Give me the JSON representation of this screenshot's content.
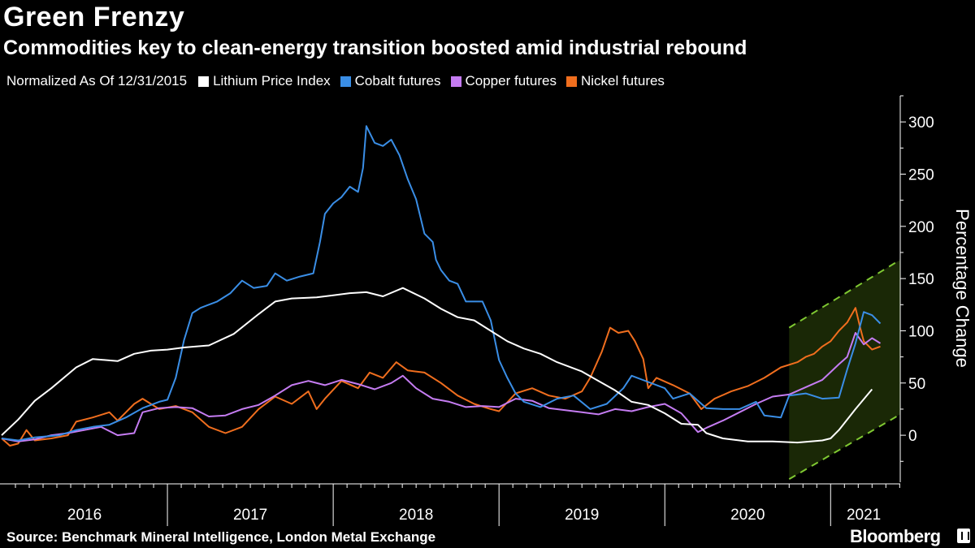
{
  "header": {
    "title": "Green Frenzy",
    "subtitle": "Commodities key to clean-energy transition boosted amid industrial rebound"
  },
  "legend": {
    "note": "Normalized As Of 12/31/2015",
    "items": [
      {
        "label": "Lithium Price Index",
        "color": "#ffffff"
      },
      {
        "label": "Cobalt futures",
        "color": "#3a8ee6"
      },
      {
        "label": "Copper futures",
        "color": "#c57cf2"
      },
      {
        "label": "Nickel futures",
        "color": "#f06e1e"
      }
    ]
  },
  "footer": {
    "source": "Source: Benchmark Mineral Intelligence, London Metal Exchange",
    "brand": "Bloomberg"
  },
  "colors": {
    "background": "#000000",
    "text": "#ffffff",
    "axis": "#ffffff",
    "highlight_fill": "#1b2a06",
    "highlight_dash": "#7fc832"
  },
  "chart_data": {
    "type": "line",
    "ylabel": "Percentage Change",
    "xlabel": "",
    "y_axis_side": "right",
    "ylim": [
      -45,
      325
    ],
    "y_ticks": [
      0,
      50,
      100,
      150,
      200,
      250,
      300
    ],
    "xlim": [
      2016.0,
      2021.42
    ],
    "x_tick_labels": [
      {
        "label": "2016",
        "x": 2016.5
      },
      {
        "label": "2017",
        "x": 2017.5
      },
      {
        "label": "2018",
        "x": 2018.5
      },
      {
        "label": "2019",
        "x": 2019.5
      },
      {
        "label": "2020",
        "x": 2020.5
      },
      {
        "label": "2021",
        "x": 2021.2
      }
    ],
    "year_boundaries": [
      2017,
      2018,
      2019,
      2020,
      2021
    ],
    "grid": false,
    "legend_position": "top",
    "highlight_channel": {
      "x_start": 2020.75,
      "x_end": 2021.42,
      "upper_start": 103,
      "upper_end": 168,
      "lower_start": -42,
      "lower_end": 20
    },
    "series": [
      {
        "name": "Lithium Price Index",
        "color": "#ffffff",
        "points": [
          [
            2016.0,
            0
          ],
          [
            2016.1,
            15
          ],
          [
            2016.2,
            33
          ],
          [
            2016.3,
            45
          ],
          [
            2016.45,
            65
          ],
          [
            2016.55,
            73
          ],
          [
            2016.7,
            71
          ],
          [
            2016.8,
            78
          ],
          [
            2016.9,
            81
          ],
          [
            2017.0,
            82
          ],
          [
            2017.1,
            84
          ],
          [
            2017.25,
            86
          ],
          [
            2017.4,
            97
          ],
          [
            2017.55,
            116
          ],
          [
            2017.65,
            128
          ],
          [
            2017.75,
            131
          ],
          [
            2017.9,
            132
          ],
          [
            2018.0,
            134
          ],
          [
            2018.1,
            136
          ],
          [
            2018.2,
            137
          ],
          [
            2018.3,
            133
          ],
          [
            2018.42,
            141
          ],
          [
            2018.55,
            131
          ],
          [
            2018.65,
            121
          ],
          [
            2018.75,
            113
          ],
          [
            2018.85,
            110
          ],
          [
            2018.95,
            100
          ],
          [
            2019.05,
            90
          ],
          [
            2019.15,
            83
          ],
          [
            2019.25,
            78
          ],
          [
            2019.35,
            70
          ],
          [
            2019.5,
            61
          ],
          [
            2019.6,
            52
          ],
          [
            2019.7,
            43
          ],
          [
            2019.8,
            32
          ],
          [
            2019.9,
            29
          ],
          [
            2020.0,
            21
          ],
          [
            2020.1,
            11
          ],
          [
            2020.2,
            10
          ],
          [
            2020.25,
            2
          ],
          [
            2020.35,
            -3
          ],
          [
            2020.5,
            -6
          ],
          [
            2020.65,
            -6
          ],
          [
            2020.8,
            -7
          ],
          [
            2020.95,
            -5
          ],
          [
            2021.0,
            -3
          ],
          [
            2021.05,
            5
          ],
          [
            2021.15,
            25
          ],
          [
            2021.25,
            44
          ]
        ]
      },
      {
        "name": "Cobalt futures",
        "color": "#3a8ee6",
        "points": [
          [
            2016.0,
            -3
          ],
          [
            2016.1,
            -5
          ],
          [
            2016.2,
            -2
          ],
          [
            2016.35,
            0
          ],
          [
            2016.45,
            5
          ],
          [
            2016.55,
            8
          ],
          [
            2016.65,
            10
          ],
          [
            2016.75,
            17
          ],
          [
            2016.85,
            26
          ],
          [
            2016.95,
            32
          ],
          [
            2017.0,
            34
          ],
          [
            2017.05,
            55
          ],
          [
            2017.1,
            91
          ],
          [
            2017.15,
            117
          ],
          [
            2017.2,
            122
          ],
          [
            2017.3,
            128
          ],
          [
            2017.38,
            136
          ],
          [
            2017.45,
            148
          ],
          [
            2017.52,
            141
          ],
          [
            2017.6,
            143
          ],
          [
            2017.65,
            155
          ],
          [
            2017.72,
            148
          ],
          [
            2017.8,
            152
          ],
          [
            2017.88,
            155
          ],
          [
            2017.92,
            185
          ],
          [
            2017.95,
            212
          ],
          [
            2018.0,
            222
          ],
          [
            2018.05,
            228
          ],
          [
            2018.1,
            238
          ],
          [
            2018.15,
            233
          ],
          [
            2018.18,
            256
          ],
          [
            2018.2,
            296
          ],
          [
            2018.25,
            280
          ],
          [
            2018.3,
            277
          ],
          [
            2018.35,
            283
          ],
          [
            2018.4,
            268
          ],
          [
            2018.45,
            245
          ],
          [
            2018.5,
            226
          ],
          [
            2018.55,
            193
          ],
          [
            2018.6,
            185
          ],
          [
            2018.62,
            168
          ],
          [
            2018.65,
            158
          ],
          [
            2018.7,
            148
          ],
          [
            2018.75,
            145
          ],
          [
            2018.8,
            128
          ],
          [
            2018.9,
            128
          ],
          [
            2018.95,
            110
          ],
          [
            2019.0,
            72
          ],
          [
            2019.05,
            55
          ],
          [
            2019.1,
            40
          ],
          [
            2019.15,
            32
          ],
          [
            2019.25,
            27
          ],
          [
            2019.35,
            35
          ],
          [
            2019.45,
            38
          ],
          [
            2019.55,
            25
          ],
          [
            2019.65,
            30
          ],
          [
            2019.75,
            45
          ],
          [
            2019.8,
            57
          ],
          [
            2019.9,
            51
          ],
          [
            2020.0,
            45
          ],
          [
            2020.05,
            35
          ],
          [
            2020.15,
            40
          ],
          [
            2020.25,
            26
          ],
          [
            2020.35,
            25
          ],
          [
            2020.45,
            25
          ],
          [
            2020.55,
            32
          ],
          [
            2020.6,
            19
          ],
          [
            2020.7,
            17
          ],
          [
            2020.75,
            38
          ],
          [
            2020.85,
            40
          ],
          [
            2020.95,
            35
          ],
          [
            2021.05,
            36
          ],
          [
            2021.1,
            63
          ],
          [
            2021.15,
            88
          ],
          [
            2021.2,
            118
          ],
          [
            2021.25,
            115
          ],
          [
            2021.3,
            107
          ]
        ]
      },
      {
        "name": "Copper futures",
        "color": "#c57cf2",
        "points": [
          [
            2016.0,
            -3
          ],
          [
            2016.1,
            -6
          ],
          [
            2016.2,
            -4
          ],
          [
            2016.3,
            0
          ],
          [
            2016.4,
            2
          ],
          [
            2016.5,
            5
          ],
          [
            2016.6,
            8
          ],
          [
            2016.7,
            0
          ],
          [
            2016.8,
            2
          ],
          [
            2016.85,
            22
          ],
          [
            2016.95,
            26
          ],
          [
            2017.05,
            27
          ],
          [
            2017.15,
            26
          ],
          [
            2017.25,
            18
          ],
          [
            2017.35,
            19
          ],
          [
            2017.45,
            25
          ],
          [
            2017.55,
            29
          ],
          [
            2017.65,
            38
          ],
          [
            2017.75,
            48
          ],
          [
            2017.85,
            52
          ],
          [
            2017.95,
            48
          ],
          [
            2018.05,
            53
          ],
          [
            2018.15,
            49
          ],
          [
            2018.25,
            44
          ],
          [
            2018.35,
            50
          ],
          [
            2018.42,
            57
          ],
          [
            2018.5,
            45
          ],
          [
            2018.6,
            35
          ],
          [
            2018.7,
            32
          ],
          [
            2018.8,
            27
          ],
          [
            2018.9,
            28
          ],
          [
            2019.0,
            27
          ],
          [
            2019.1,
            35
          ],
          [
            2019.2,
            33
          ],
          [
            2019.3,
            26
          ],
          [
            2019.4,
            24
          ],
          [
            2019.5,
            22
          ],
          [
            2019.6,
            20
          ],
          [
            2019.7,
            25
          ],
          [
            2019.8,
            23
          ],
          [
            2019.9,
            27
          ],
          [
            2020.0,
            30
          ],
          [
            2020.1,
            21
          ],
          [
            2020.2,
            3
          ],
          [
            2020.25,
            7
          ],
          [
            2020.35,
            14
          ],
          [
            2020.45,
            22
          ],
          [
            2020.55,
            30
          ],
          [
            2020.65,
            37
          ],
          [
            2020.75,
            39
          ],
          [
            2020.85,
            46
          ],
          [
            2020.95,
            53
          ],
          [
            2021.05,
            68
          ],
          [
            2021.1,
            75
          ],
          [
            2021.15,
            98
          ],
          [
            2021.2,
            87
          ],
          [
            2021.25,
            93
          ],
          [
            2021.3,
            88
          ]
        ]
      },
      {
        "name": "Nickel futures",
        "color": "#f06e1e",
        "points": [
          [
            2016.0,
            -3
          ],
          [
            2016.05,
            -10
          ],
          [
            2016.1,
            -8
          ],
          [
            2016.15,
            5
          ],
          [
            2016.2,
            -5
          ],
          [
            2016.3,
            -3
          ],
          [
            2016.4,
            0
          ],
          [
            2016.45,
            13
          ],
          [
            2016.55,
            17
          ],
          [
            2016.65,
            22
          ],
          [
            2016.7,
            14
          ],
          [
            2016.8,
            30
          ],
          [
            2016.85,
            35
          ],
          [
            2016.95,
            25
          ],
          [
            2017.05,
            28
          ],
          [
            2017.15,
            22
          ],
          [
            2017.25,
            8
          ],
          [
            2017.35,
            2
          ],
          [
            2017.45,
            8
          ],
          [
            2017.55,
            25
          ],
          [
            2017.65,
            37
          ],
          [
            2017.75,
            30
          ],
          [
            2017.85,
            42
          ],
          [
            2017.9,
            25
          ],
          [
            2017.95,
            35
          ],
          [
            2018.05,
            52
          ],
          [
            2018.15,
            45
          ],
          [
            2018.22,
            60
          ],
          [
            2018.3,
            55
          ],
          [
            2018.38,
            70
          ],
          [
            2018.45,
            62
          ],
          [
            2018.55,
            60
          ],
          [
            2018.65,
            50
          ],
          [
            2018.75,
            38
          ],
          [
            2018.85,
            30
          ],
          [
            2018.95,
            25
          ],
          [
            2019.0,
            23
          ],
          [
            2019.1,
            40
          ],
          [
            2019.2,
            45
          ],
          [
            2019.3,
            38
          ],
          [
            2019.4,
            35
          ],
          [
            2019.5,
            42
          ],
          [
            2019.55,
            55
          ],
          [
            2019.62,
            80
          ],
          [
            2019.67,
            103
          ],
          [
            2019.72,
            98
          ],
          [
            2019.78,
            100
          ],
          [
            2019.82,
            90
          ],
          [
            2019.87,
            73
          ],
          [
            2019.9,
            45
          ],
          [
            2019.95,
            55
          ],
          [
            2020.05,
            48
          ],
          [
            2020.15,
            40
          ],
          [
            2020.22,
            25
          ],
          [
            2020.3,
            35
          ],
          [
            2020.4,
            42
          ],
          [
            2020.5,
            47
          ],
          [
            2020.6,
            55
          ],
          [
            2020.7,
            65
          ],
          [
            2020.8,
            70
          ],
          [
            2020.85,
            75
          ],
          [
            2020.9,
            78
          ],
          [
            2020.95,
            85
          ],
          [
            2021.0,
            90
          ],
          [
            2021.05,
            100
          ],
          [
            2021.1,
            108
          ],
          [
            2021.15,
            122
          ],
          [
            2021.18,
            102
          ],
          [
            2021.2,
            90
          ],
          [
            2021.25,
            82
          ],
          [
            2021.3,
            85
          ]
        ]
      }
    ]
  }
}
